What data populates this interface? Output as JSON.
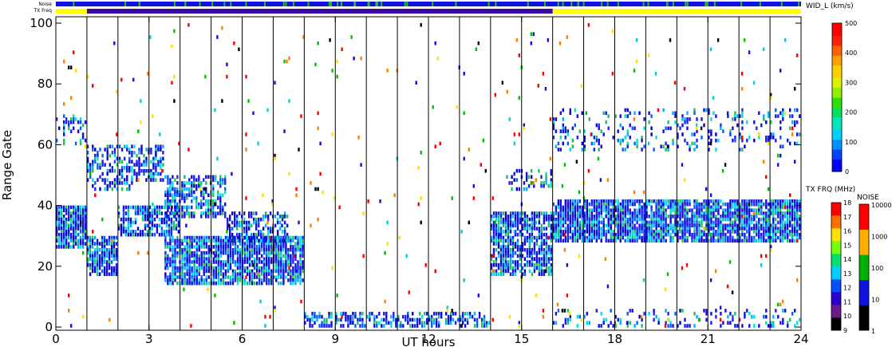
{
  "chart_data": {
    "type": "heatmap",
    "title": "",
    "top_strip_labels": {
      "noise": "Noise",
      "txfreq": "TX Freq"
    },
    "xlabel": "UT hours",
    "ylabel": "Range Gate",
    "xlim": [
      0,
      24
    ],
    "ylim": [
      0,
      100
    ],
    "x_ticks": [
      "0",
      "3",
      "6",
      "9",
      "12",
      "15",
      "18",
      "21",
      "24"
    ],
    "y_ticks": [
      "0",
      "20",
      "40",
      "60",
      "80",
      "100"
    ],
    "scan_boundaries_ut": [
      1.0,
      2.0,
      3.0,
      4.0,
      5.0,
      6.0,
      7.0,
      8.0,
      9.0,
      10.0,
      11.0,
      12.0,
      13.0,
      14.0,
      15.0,
      16.0,
      17.0,
      18.0,
      19.0,
      20.0,
      21.0,
      22.0,
      23.0
    ],
    "scatter_regions": [
      {
        "x": [
          0.0,
          1.0
        ],
        "y": [
          26,
          40
        ],
        "density": 0.9
      },
      {
        "x": [
          0.0,
          1.0
        ],
        "y": [
          60,
          70
        ],
        "density": 0.3
      },
      {
        "x": [
          1.0,
          2.0
        ],
        "y": [
          17,
          30
        ],
        "density": 0.8
      },
      {
        "x": [
          1.0,
          2.5
        ],
        "y": [
          45,
          60
        ],
        "density": 0.45
      },
      {
        "x": [
          2.0,
          4.0
        ],
        "y": [
          30,
          40
        ],
        "density": 0.7
      },
      {
        "x": [
          2.5,
          3.5
        ],
        "y": [
          48,
          60
        ],
        "density": 0.55
      },
      {
        "x": [
          3.5,
          5.5
        ],
        "y": [
          36,
          50
        ],
        "density": 0.6
      },
      {
        "x": [
          3.5,
          8.0
        ],
        "y": [
          14,
          30
        ],
        "density": 0.85
      },
      {
        "x": [
          5.5,
          7.5
        ],
        "y": [
          28,
          38
        ],
        "density": 0.55
      },
      {
        "x": [
          8.0,
          14.0
        ],
        "y": [
          0,
          5
        ],
        "density": 0.55
      },
      {
        "x": [
          14.0,
          16.0
        ],
        "y": [
          17,
          38
        ],
        "density": 0.75
      },
      {
        "x": [
          14.5,
          16.0
        ],
        "y": [
          45,
          52
        ],
        "density": 0.3
      },
      {
        "x": [
          16.0,
          24.0
        ],
        "y": [
          28,
          42
        ],
        "density": 0.85
      },
      {
        "x": [
          16.0,
          24.0
        ],
        "y": [
          58,
          72
        ],
        "density": 0.18
      },
      {
        "x": [
          16.0,
          24.0
        ],
        "y": [
          0,
          6
        ],
        "density": 0.2
      },
      {
        "x": [
          0.0,
          24.0
        ],
        "y": [
          0,
          100
        ],
        "density": 0.012
      }
    ],
    "colorbars": [
      {
        "title": "WID_L (km/s)",
        "ticks": [
          "500",
          "400",
          "300",
          "200",
          "100",
          "0"
        ],
        "range": [
          0,
          500
        ]
      },
      {
        "title": "TX FRQ (MHz)",
        "ticks": [
          "18",
          "17",
          "16",
          "15",
          "14",
          "13",
          "12",
          "11",
          "10",
          "9"
        ],
        "colors": [
          "#000000",
          "#6a1a8a",
          "#2a00d0",
          "#0050ff",
          "#00d0ff",
          "#00e070",
          "#7cff00",
          "#ffe000",
          "#ff7000",
          "#ff0000"
        ]
      },
      {
        "title": "NOISE",
        "ticks": [
          "10000",
          "1000",
          "100",
          "10",
          "1"
        ],
        "colors": [
          "#000000",
          "#1010e0",
          "#00b000",
          "#ffb000",
          "#ff0000"
        ]
      }
    ],
    "strips": {
      "noise_base": "#1010e0",
      "noise_accent": "#20c020",
      "txfreq_base": "#ffff00",
      "txfreq_accent": "#3a0aa0",
      "txfreq_accent_range": [
        1.0,
        16.0
      ]
    },
    "grid": false
  }
}
